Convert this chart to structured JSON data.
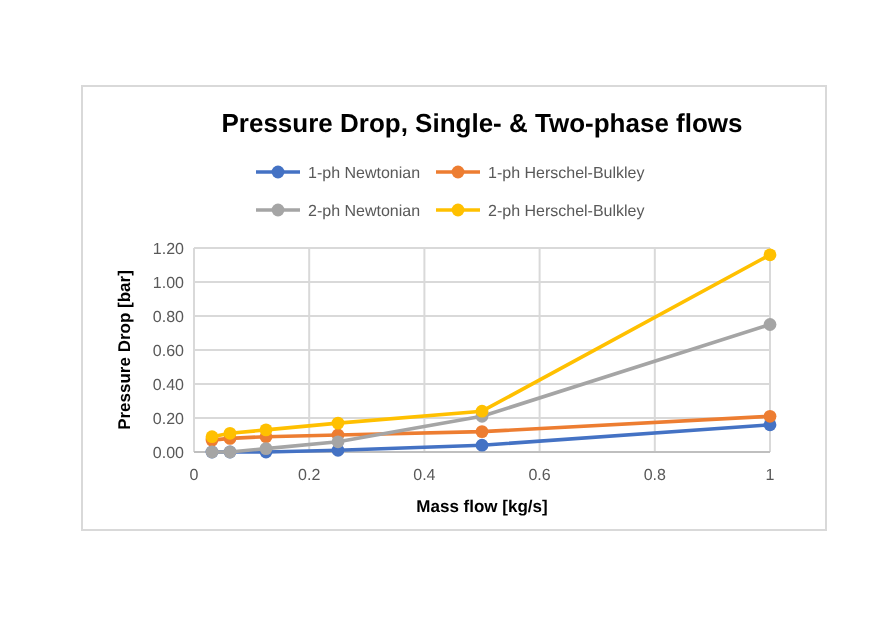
{
  "chart_data": {
    "type": "line",
    "title": "Pressure Drop, Single- & Two-phase flows",
    "xlabel": "Mass flow [kg/s]",
    "ylabel": "Pressure Drop [bar]",
    "x": [
      0.03125,
      0.0625,
      0.125,
      0.25,
      0.5,
      1
    ],
    "series": [
      {
        "name": "1-ph Newtonian",
        "color": "#4472c4",
        "values": [
          0,
          0,
          0,
          0.01,
          0.04,
          0.16
        ]
      },
      {
        "name": "1-ph Herschel-Bulkley",
        "color": "#ed7d31",
        "values": [
          0.07,
          0.08,
          0.09,
          0.1,
          0.12,
          0.21
        ]
      },
      {
        "name": "2-ph Newtonian",
        "color": "#a5a5a5",
        "values": [
          0,
          0,
          0.02,
          0.06,
          0.21,
          0.75
        ]
      },
      {
        "name": "2-ph Herschel-Bulkley",
        "color": "#ffc000",
        "values": [
          0.09,
          0.11,
          0.13,
          0.17,
          0.24,
          1.16
        ]
      }
    ],
    "xlim": [
      0,
      1
    ],
    "xticks": [
      0,
      0.2,
      0.4,
      0.6,
      0.8,
      1
    ],
    "ylim": [
      0,
      1.2
    ],
    "yticks": [
      {
        "value": 0,
        "label": "0.00"
      },
      {
        "value": 0.2,
        "label": "0.20"
      },
      {
        "value": 0.4,
        "label": "0.40"
      },
      {
        "value": 0.6,
        "label": "0.60"
      },
      {
        "value": 0.8,
        "label": "0.80"
      },
      {
        "value": 1,
        "label": "1.00"
      },
      {
        "value": 1.2,
        "label": "1.20"
      }
    ],
    "grid": true,
    "legend": "top",
    "marker": "circle",
    "line_style": "solid"
  }
}
